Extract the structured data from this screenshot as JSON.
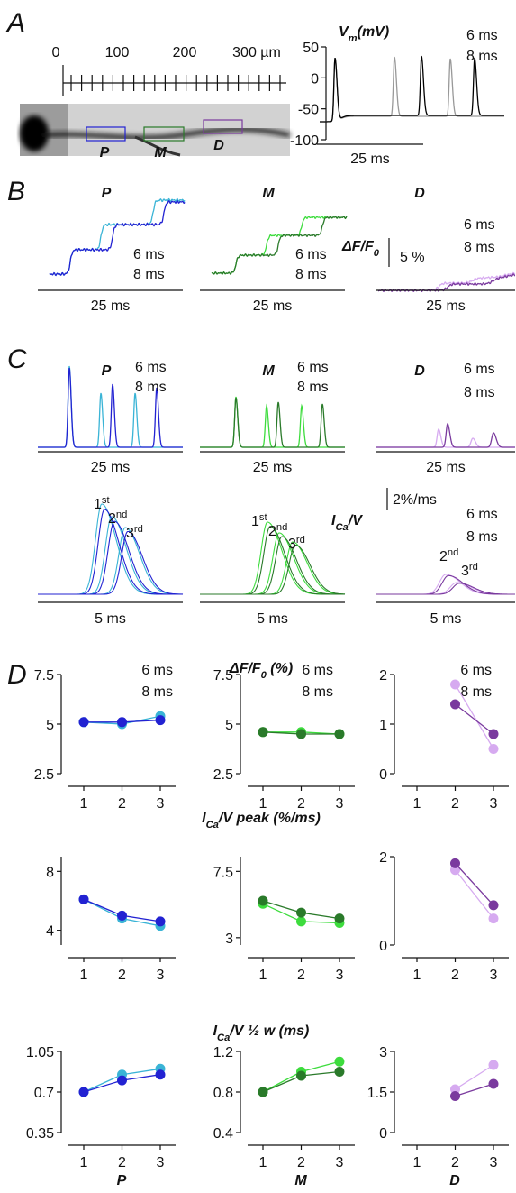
{
  "panel_labels": {
    "a": "A",
    "b": "B",
    "c": "C",
    "d": "D"
  },
  "panel_a": {
    "scale_labels": [
      "0",
      "100",
      "200",
      "300 µm"
    ],
    "roi_labels": [
      "P",
      "M",
      "D"
    ],
    "vm": {
      "label": {
        "base": "V",
        "sub": "m",
        "rest": "(mV)"
      },
      "ylim": [
        -100,
        50
      ],
      "yticks": [
        50,
        0,
        -50,
        -100
      ],
      "legend": [
        "6 ms",
        "8 ms"
      ],
      "time_scale": "25 ms"
    }
  },
  "panel_b": {
    "column_titles": [
      "P",
      "M",
      "D"
    ],
    "legends": [
      [
        "6 ms",
        "8 ms"
      ],
      [
        "6 ms",
        "8 ms"
      ],
      [
        "6 ms",
        "8 ms"
      ]
    ],
    "time_scales": [
      "25 ms",
      "25 ms",
      "25 ms"
    ],
    "amplitude_label": {
      "base": "ΔF/F",
      "sub": "0"
    },
    "amplitude_scale": "5 %"
  },
  "panel_c": {
    "column_titles": [
      "P",
      "M",
      "D"
    ],
    "legends": [
      [
        "6 ms",
        "8 ms"
      ],
      [
        "6 ms",
        "8 ms"
      ],
      [
        "6 ms",
        "8 ms"
      ]
    ],
    "spike_time_scales": [
      "25 ms",
      "25 ms",
      "25 ms"
    ],
    "current_label": {
      "base": "I",
      "sub": "Ca",
      "rest": "/V"
    },
    "current_scale": "2%/ms",
    "ordinals": [
      [
        {
          "num": "1",
          "sup": "st"
        },
        {
          "num": "2",
          "sup": "nd"
        },
        {
          "num": "3",
          "sup": "rd"
        }
      ],
      [
        {
          "num": "1",
          "sup": "st"
        },
        {
          "num": "2",
          "sup": "nd"
        },
        {
          "num": "3",
          "sup": "rd"
        }
      ],
      [
        {
          "num": "2",
          "sup": "nd"
        },
        {
          "num": "3",
          "sup": "rd"
        }
      ]
    ],
    "current_legend": [
      "6 ms",
      "8 ms"
    ],
    "current_time_scales": [
      "5 ms",
      "5 ms",
      "5 ms"
    ]
  },
  "panel_d": {
    "row_titles": [
      {
        "base": "ΔF/F",
        "sub": "0",
        "rest": " (%)"
      },
      {
        "base": "I",
        "sub": "Ca",
        "rest": "/V peak (%/ms)"
      },
      {
        "base": "I",
        "sub": "Ca",
        "rest": "/V ½ w (ms)"
      }
    ],
    "column_labels": [
      "P",
      "M",
      "D"
    ]
  },
  "chart_data": [
    {
      "type": "line",
      "x": [
        1,
        2,
        3
      ],
      "xlim": [
        0.6,
        3.4
      ],
      "xticks": [
        1,
        2,
        3
      ],
      "ylim": [
        2.5,
        7.5
      ],
      "yticks": [
        2.5,
        5,
        7.5
      ],
      "series": [
        {
          "name": "6 ms",
          "color": "#3ab4d6",
          "values": [
            5.1,
            5.0,
            5.4
          ]
        },
        {
          "name": "8 ms",
          "color": "#2222d2",
          "values": [
            5.1,
            5.1,
            5.2
          ]
        }
      ]
    },
    {
      "type": "line",
      "x": [
        1,
        2,
        3
      ],
      "xlim": [
        0.6,
        3.4
      ],
      "xticks": [
        1,
        2,
        3
      ],
      "ylim": [
        2.5,
        7.5
      ],
      "yticks": [
        2.5,
        5,
        7.5
      ],
      "series": [
        {
          "name": "6 ms",
          "color": "#3ddc3d",
          "values": [
            4.6,
            4.6,
            4.5
          ]
        },
        {
          "name": "8 ms",
          "color": "#2a7a2a",
          "values": [
            4.6,
            4.5,
            4.5
          ]
        }
      ]
    },
    {
      "type": "line",
      "x": [
        1,
        2,
        3
      ],
      "xlim": [
        0.6,
        3.4
      ],
      "xticks": [
        1,
        2,
        3
      ],
      "ylim": [
        0,
        2
      ],
      "yticks": [
        0,
        1,
        2
      ],
      "series": [
        {
          "name": "6 ms",
          "color": "#d6aaf0",
          "values": [
            null,
            1.8,
            0.5
          ]
        },
        {
          "name": "8 ms",
          "color": "#7a3a9e",
          "values": [
            null,
            1.4,
            0.8
          ]
        }
      ]
    },
    {
      "type": "line",
      "x": [
        1,
        2,
        3
      ],
      "xlim": [
        0.6,
        3.4
      ],
      "xticks": [
        1,
        2,
        3
      ],
      "ylim": [
        3,
        9
      ],
      "yticks": [
        4,
        8
      ],
      "series": [
        {
          "name": "6 ms",
          "color": "#3ab4d6",
          "values": [
            6.1,
            4.8,
            4.3
          ]
        },
        {
          "name": "8 ms",
          "color": "#2222d2",
          "values": [
            6.1,
            5.0,
            4.6
          ]
        }
      ]
    },
    {
      "type": "line",
      "x": [
        1,
        2,
        3
      ],
      "xlim": [
        0.6,
        3.4
      ],
      "xticks": [
        1,
        2,
        3
      ],
      "ylim": [
        2.5,
        8.5
      ],
      "yticks": [
        3,
        7.5
      ],
      "series": [
        {
          "name": "6 ms",
          "color": "#3ddc3d",
          "values": [
            5.3,
            4.1,
            4.0
          ]
        },
        {
          "name": "8 ms",
          "color": "#2a7a2a",
          "values": [
            5.5,
            4.7,
            4.3
          ]
        }
      ]
    },
    {
      "type": "line",
      "x": [
        1,
        2,
        3
      ],
      "xlim": [
        0.6,
        3.4
      ],
      "xticks": [
        1,
        2,
        3
      ],
      "ylim": [
        0,
        2
      ],
      "yticks": [
        0,
        2
      ],
      "series": [
        {
          "name": "6 ms",
          "color": "#d6aaf0",
          "values": [
            null,
            1.7,
            0.6
          ]
        },
        {
          "name": "8 ms",
          "color": "#7a3a9e",
          "values": [
            null,
            1.85,
            0.9
          ]
        }
      ]
    },
    {
      "type": "line",
      "x": [
        1,
        2,
        3
      ],
      "xlim": [
        0.6,
        3.4
      ],
      "xticks": [
        1,
        2,
        3
      ],
      "ylim": [
        0.35,
        1.05
      ],
      "yticks": [
        0.35,
        0.7,
        1.05
      ],
      "series": [
        {
          "name": "6 ms",
          "color": "#3ab4d6",
          "values": [
            0.7,
            0.85,
            0.9
          ]
        },
        {
          "name": "8 ms",
          "color": "#2222d2",
          "values": [
            0.7,
            0.8,
            0.85
          ]
        }
      ]
    },
    {
      "type": "line",
      "x": [
        1,
        2,
        3
      ],
      "xlim": [
        0.6,
        3.4
      ],
      "xticks": [
        1,
        2,
        3
      ],
      "ylim": [
        0.4,
        1.2
      ],
      "yticks": [
        0.4,
        0.8,
        1.2
      ],
      "series": [
        {
          "name": "6 ms",
          "color": "#3ddc3d",
          "values": [
            0.8,
            1.0,
            1.1
          ]
        },
        {
          "name": "8 ms",
          "color": "#2a7a2a",
          "values": [
            0.8,
            0.96,
            1.0
          ]
        }
      ]
    },
    {
      "type": "line",
      "x": [
        1,
        2,
        3
      ],
      "xlim": [
        0.6,
        3.4
      ],
      "xticks": [
        1,
        2,
        3
      ],
      "ylim": [
        0,
        3
      ],
      "yticks": [
        0,
        1.5,
        3
      ],
      "series": [
        {
          "name": "6 ms",
          "color": "#d6aaf0",
          "values": [
            null,
            1.6,
            2.5
          ]
        },
        {
          "name": "8 ms",
          "color": "#7a3a9e",
          "values": [
            null,
            1.35,
            1.8
          ]
        }
      ]
    }
  ]
}
